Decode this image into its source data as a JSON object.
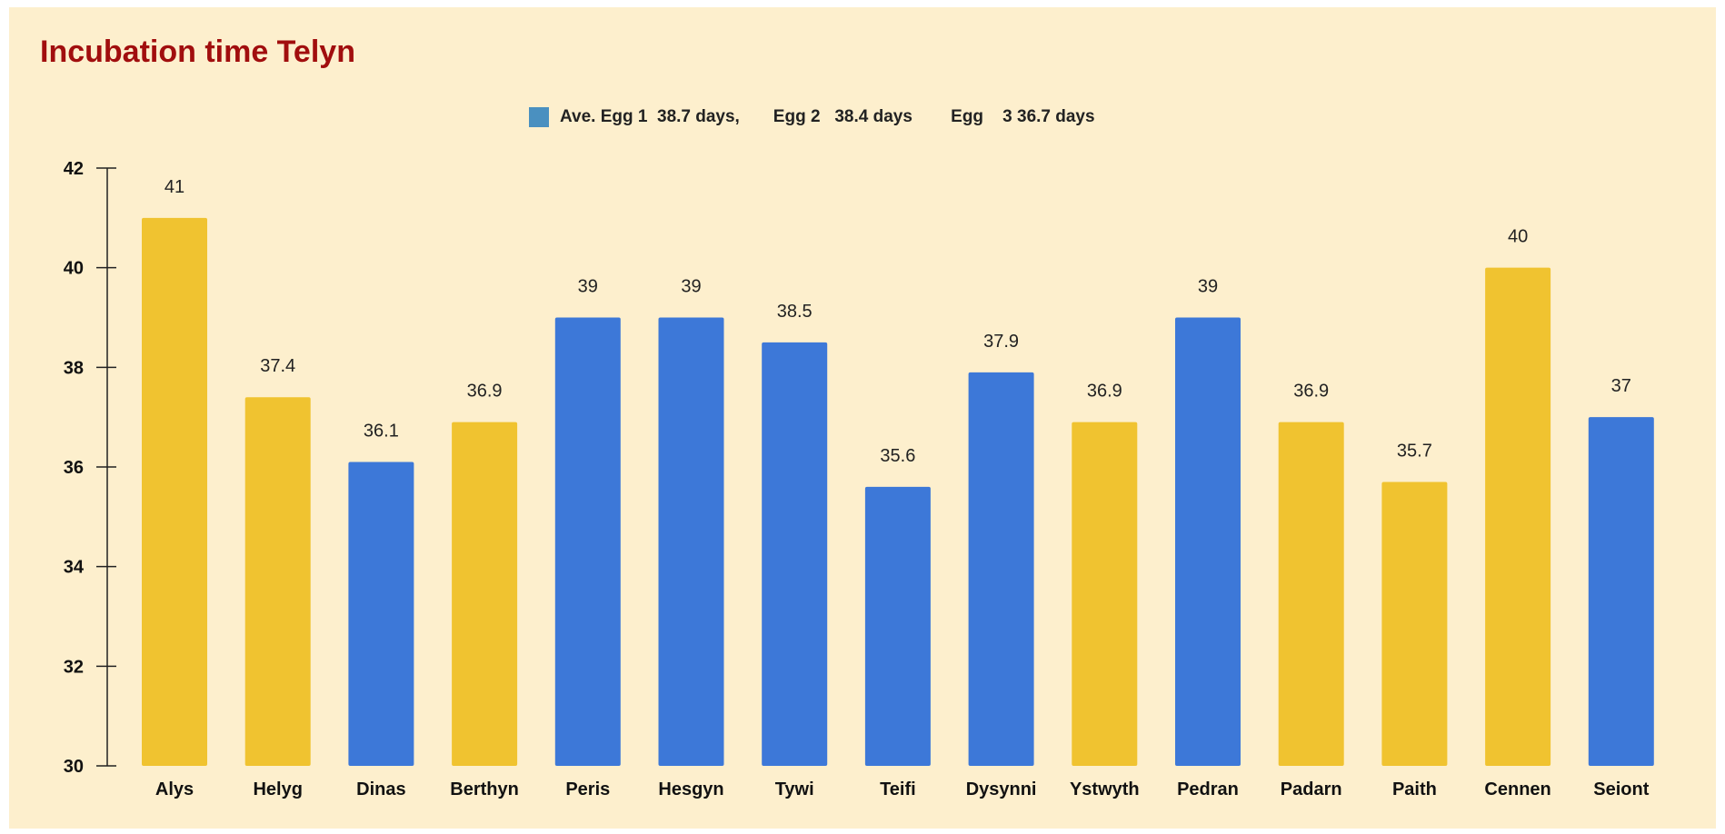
{
  "chart_data": {
    "type": "bar",
    "title": "Incubation time Telyn",
    "legend": {
      "label": "Ave. Egg 1  38.7 days,       Egg 2   38.4 days        Egg    3 36.7 days",
      "color": "#4a90c0",
      "placement": "top-center"
    },
    "categories": [
      "Alys",
      "Helyg",
      "Dinas",
      "Berthyn",
      "Peris",
      "Hesgyn",
      "Tywi",
      "Teifi",
      "Dysynni",
      "Ystwyth",
      "Pedran",
      "Padarn",
      "Paith",
      "Cennen",
      "Seiont"
    ],
    "values": [
      41,
      37.4,
      36.1,
      36.9,
      39,
      39,
      38.5,
      35.6,
      37.9,
      36.9,
      39,
      36.9,
      35.7,
      40,
      37
    ],
    "data_labels": [
      "41",
      "37.4",
      "36.1",
      "36.9",
      "39",
      "39",
      "38.5",
      "35.6",
      "37.9",
      "36.9",
      "39",
      "36.9",
      "35.7",
      "40",
      "37"
    ],
    "bar_colors": [
      "#f0c330",
      "#f0c330",
      "#3d78d8",
      "#f0c330",
      "#3d78d8",
      "#3d78d8",
      "#3d78d8",
      "#3d78d8",
      "#3d78d8",
      "#f0c330",
      "#3d78d8",
      "#f0c330",
      "#f0c330",
      "#f0c330",
      "#3d78d8"
    ],
    "yticks": [
      "30",
      "32",
      "34",
      "36",
      "38",
      "40",
      "42"
    ],
    "ylim": [
      30,
      42
    ],
    "xlabel": "",
    "ylabel": "",
    "grid": false
  },
  "colors": {
    "background": "#fdefcd",
    "title": "#a10e0e",
    "axis": "#222222"
  }
}
